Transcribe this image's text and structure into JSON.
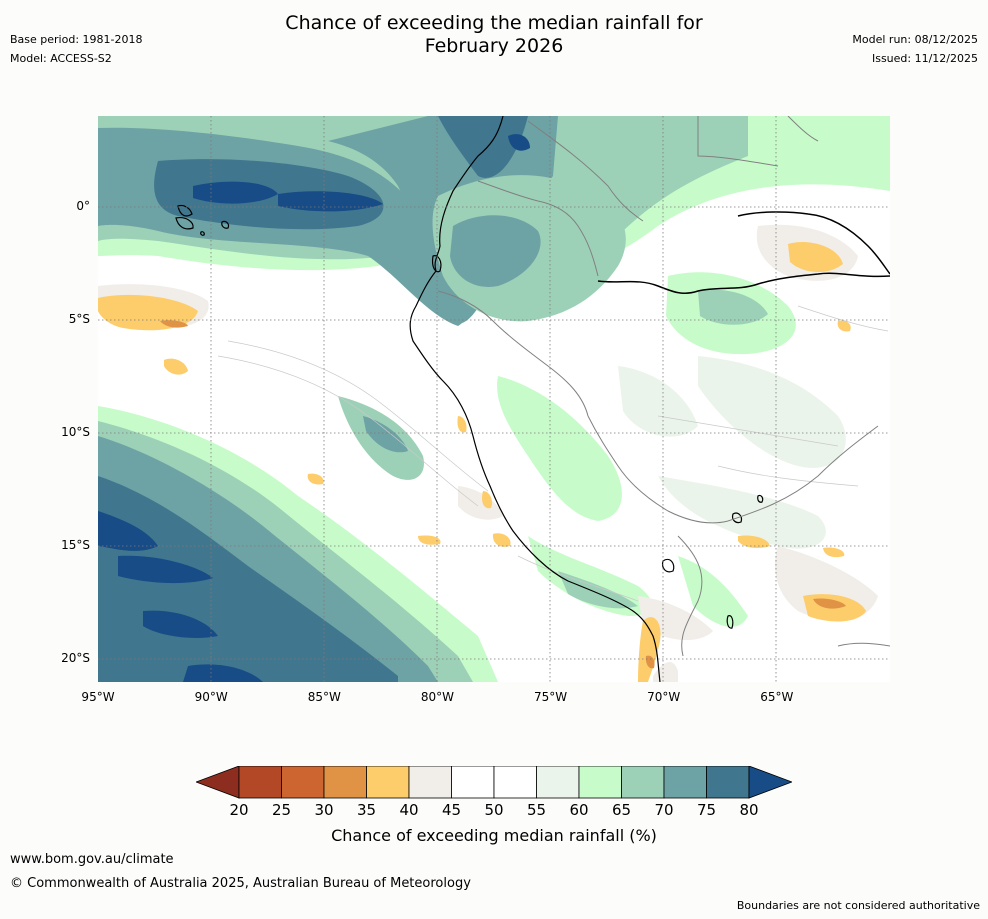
{
  "header": {
    "title_line1": "Chance of exceeding the median rainfall for",
    "title_line2": "February 2026",
    "base_period": "Base period: 1981-2018",
    "model": "Model: ACCESS-S2",
    "model_run": "Model run: 08/12/2025",
    "issued": "Issued: 11/12/2025"
  },
  "map": {
    "lon_range": [
      -95,
      -60
    ],
    "lat_range": [
      4,
      -21
    ],
    "lat_labels": [
      "0°",
      "5°S",
      "10°S",
      "15°S",
      "20°S"
    ],
    "lat_values": [
      0,
      -5,
      -10,
      -15,
      -20
    ],
    "lon_labels": [
      "95°W",
      "90°W",
      "85°W",
      "80°W",
      "75°W",
      "70°W",
      "65°W"
    ],
    "lon_values": [
      -95,
      -90,
      -85,
      -80,
      -75,
      -70,
      -65
    ],
    "gridlines": "dotted"
  },
  "colorbar": {
    "label": "Chance of exceeding median rainfall (%)",
    "ticks": [
      "20",
      "25",
      "30",
      "35",
      "40",
      "45",
      "50",
      "55",
      "60",
      "65",
      "70",
      "75",
      "80"
    ],
    "colors": [
      "#8c2d1f",
      "#b24825",
      "#cc6530",
      "#e09345",
      "#fdcd6c",
      "#f1ede9",
      "#ffffff",
      "#ffffff",
      "#ebf4ea",
      "#c7fcca",
      "#9dd1b7",
      "#6ea3a5",
      "#40778f",
      "#174c86"
    ],
    "extend": "both"
  },
  "footer": {
    "url": "www.bom.gov.au/climate",
    "copyright": "© Commonwealth of Australia 2025, Australian Bureau of Meteorology",
    "disclaimer": "Boundaries are not considered authoritative"
  }
}
